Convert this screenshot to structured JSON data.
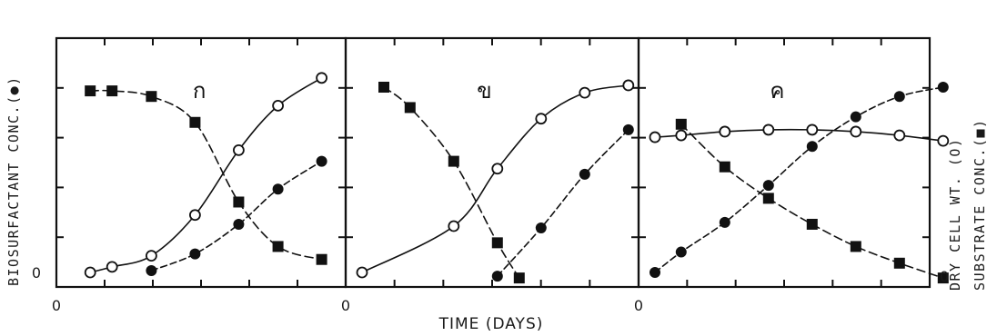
{
  "chart_data": {
    "type": "line",
    "xlabel": "TIME (DAYS)",
    "ylabel_left": "BIOSURFACTANT CONC.(●)",
    "ylabel_right_1": "DRY CELL WT. (O)",
    "ylabel_right_2": "SUBSTRATE CONC.(■)",
    "x_origin_label": "0",
    "y_origin_label": "0",
    "xlim": [
      0,
      6.4
    ],
    "ylim": [
      0,
      1.0
    ],
    "grid": false,
    "panels": [
      {
        "label": "ก",
        "series": [
          {
            "marker": "filled-square",
            "x": [
              0.4,
              0.9,
              1.8,
              2.8,
              3.8,
              4.7,
              5.7
            ],
            "y": [
              0.98,
              0.98,
              0.95,
              0.81,
              0.38,
              0.14,
              0.07
            ]
          },
          {
            "marker": "open-circle",
            "x": [
              0.4,
              0.9,
              1.8,
              2.8,
              3.8,
              4.7,
              5.7
            ],
            "y": [
              0.0,
              0.03,
              0.09,
              0.31,
              0.66,
              0.9,
              1.05
            ]
          },
          {
            "marker": "filled-circle",
            "x": [
              1.8,
              2.8,
              3.8,
              4.7,
              5.7
            ],
            "y": [
              0.01,
              0.1,
              0.26,
              0.45,
              0.6
            ]
          }
        ]
      },
      {
        "label": "ข",
        "series": [
          {
            "marker": "filled-square",
            "x": [
              0.5,
              1.1,
              2.1,
              3.1,
              3.6
            ],
            "y": [
              1.0,
              0.89,
              0.6,
              0.16,
              -0.03
            ]
          },
          {
            "marker": "open-circle",
            "x": [
              0.0,
              2.1,
              3.1,
              4.1,
              5.1,
              6.1
            ],
            "y": [
              0.0,
              0.25,
              0.56,
              0.83,
              0.97,
              1.01
            ]
          },
          {
            "marker": "filled-circle",
            "x": [
              3.1,
              4.1,
              5.1,
              6.1
            ],
            "y": [
              -0.02,
              0.24,
              0.53,
              0.77
            ]
          }
        ]
      },
      {
        "label": "ค",
        "series": [
          {
            "marker": "filled-square",
            "x": [
              0.6,
              1.6,
              2.6,
              3.6,
              4.6,
              5.6,
              6.6
            ],
            "y": [
              0.8,
              0.57,
              0.4,
              0.26,
              0.14,
              0.05,
              -0.03
            ]
          },
          {
            "marker": "open-circle",
            "x": [
              0.0,
              0.6,
              1.6,
              2.6,
              3.6,
              4.6,
              5.6,
              6.6
            ],
            "y": [
              0.73,
              0.74,
              0.76,
              0.77,
              0.77,
              0.76,
              0.74,
              0.71
            ]
          },
          {
            "marker": "filled-circle",
            "x": [
              0.0,
              0.6,
              1.6,
              2.6,
              3.6,
              4.6,
              5.6,
              6.6
            ],
            "y": [
              0.0,
              0.11,
              0.27,
              0.47,
              0.68,
              0.84,
              0.95,
              1.0
            ]
          }
        ]
      }
    ]
  }
}
